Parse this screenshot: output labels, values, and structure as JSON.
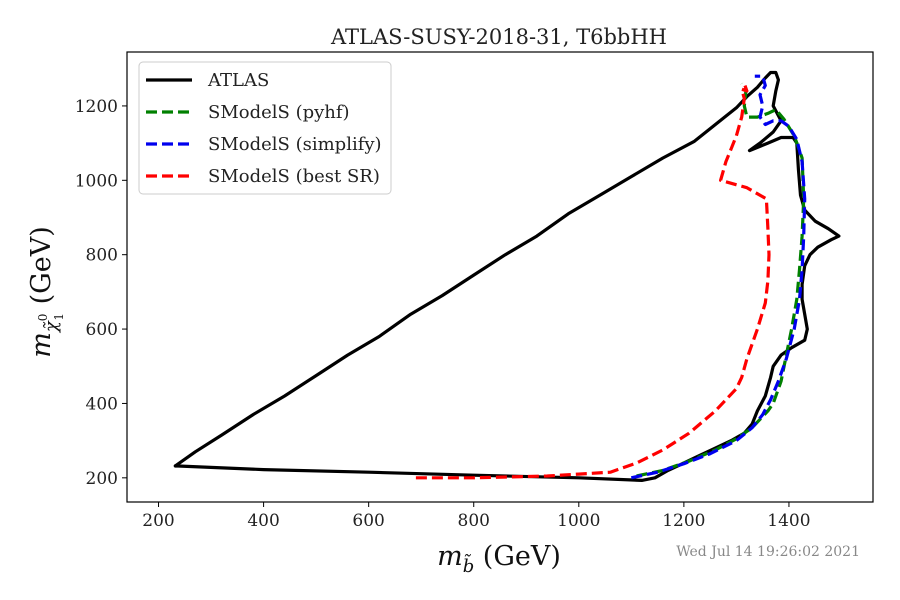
{
  "chart_data": {
    "type": "line",
    "title": "ATLAS-SUSY-2018-31, T6bbHH",
    "xlabel_math": "m",
    "xlabel_sub": "b̃",
    "xlabel_unit": " (GeV)",
    "ylabel_math": "m",
    "ylabel_sub": "χ̃",
    "ylabel_sub_sup": "0",
    "ylabel_sub_sub": "1",
    "ylabel_unit": " (GeV)",
    "xlim": [
      140,
      1560
    ],
    "ylim": [
      135,
      1345
    ],
    "xticks": [
      200,
      400,
      600,
      800,
      1000,
      1200,
      1400
    ],
    "yticks": [
      200,
      400,
      600,
      800,
      1000,
      1200
    ],
    "legend_position": "top-left",
    "timestamp": "Wed Jul 14 19:26:02 2021",
    "series": [
      {
        "name": "ATLAS",
        "color": "#000000",
        "dash": "solid",
        "points": [
          [
            232,
            232
          ],
          [
            270,
            270
          ],
          [
            320,
            315
          ],
          [
            380,
            370
          ],
          [
            440,
            420
          ],
          [
            500,
            475
          ],
          [
            560,
            530
          ],
          [
            620,
            580
          ],
          [
            680,
            640
          ],
          [
            740,
            690
          ],
          [
            800,
            745
          ],
          [
            860,
            800
          ],
          [
            920,
            850
          ],
          [
            980,
            910
          ],
          [
            1040,
            960
          ],
          [
            1100,
            1010
          ],
          [
            1160,
            1060
          ],
          [
            1220,
            1105
          ],
          [
            1260,
            1150
          ],
          [
            1300,
            1195
          ],
          [
            1320,
            1225
          ],
          [
            1340,
            1250
          ],
          [
            1355,
            1275
          ],
          [
            1365,
            1290
          ],
          [
            1375,
            1290
          ],
          [
            1380,
            1270
          ],
          [
            1375,
            1240
          ],
          [
            1370,
            1200
          ],
          [
            1385,
            1160
          ],
          [
            1370,
            1130
          ],
          [
            1345,
            1100
          ],
          [
            1325,
            1080
          ],
          [
            1360,
            1100
          ],
          [
            1385,
            1115
          ],
          [
            1408,
            1115
          ],
          [
            1415,
            1100
          ],
          [
            1418,
            1030
          ],
          [
            1422,
            960
          ],
          [
            1430,
            920
          ],
          [
            1450,
            890
          ],
          [
            1475,
            870
          ],
          [
            1495,
            850
          ],
          [
            1480,
            840
          ],
          [
            1455,
            820
          ],
          [
            1440,
            800
          ],
          [
            1430,
            770
          ],
          [
            1425,
            720
          ],
          [
            1425,
            680
          ],
          [
            1430,
            640
          ],
          [
            1435,
            600
          ],
          [
            1430,
            570
          ],
          [
            1405,
            550
          ],
          [
            1385,
            530
          ],
          [
            1370,
            500
          ],
          [
            1365,
            470
          ],
          [
            1355,
            420
          ],
          [
            1340,
            380
          ],
          [
            1330,
            345
          ],
          [
            1315,
            320
          ],
          [
            1290,
            300
          ],
          [
            1260,
            280
          ],
          [
            1230,
            260
          ],
          [
            1200,
            240
          ],
          [
            1170,
            220
          ],
          [
            1145,
            200
          ],
          [
            1120,
            193
          ],
          [
            1000,
            200
          ],
          [
            800,
            207
          ],
          [
            600,
            215
          ],
          [
            400,
            222
          ],
          [
            232,
            232
          ]
        ]
      },
      {
        "name": "SModelS (pyhf)",
        "color": "#008000",
        "dash": "dashed",
        "points": [
          [
            1110,
            205
          ],
          [
            1160,
            220
          ],
          [
            1210,
            245
          ],
          [
            1260,
            275
          ],
          [
            1300,
            305
          ],
          [
            1330,
            335
          ],
          [
            1360,
            380
          ],
          [
            1370,
            400
          ],
          [
            1385,
            460
          ],
          [
            1395,
            530
          ],
          [
            1405,
            600
          ],
          [
            1415,
            680
          ],
          [
            1420,
            760
          ],
          [
            1425,
            850
          ],
          [
            1428,
            950
          ],
          [
            1425,
            1060
          ],
          [
            1410,
            1120
          ],
          [
            1390,
            1165
          ],
          [
            1375,
            1190
          ],
          [
            1360,
            1180
          ],
          [
            1340,
            1170
          ],
          [
            1320,
            1170
          ],
          [
            1315,
            1200
          ],
          [
            1318,
            1240
          ],
          [
            1310,
            1260
          ]
        ]
      },
      {
        "name": "SModelS (simplify)",
        "color": "#0000ee",
        "dash": "dashed",
        "points": [
          [
            1100,
            200
          ],
          [
            1150,
            215
          ],
          [
            1200,
            238
          ],
          [
            1250,
            265
          ],
          [
            1300,
            300
          ],
          [
            1330,
            335
          ],
          [
            1350,
            370
          ],
          [
            1365,
            410
          ],
          [
            1380,
            460
          ],
          [
            1395,
            520
          ],
          [
            1410,
            600
          ],
          [
            1420,
            680
          ],
          [
            1425,
            760
          ],
          [
            1428,
            850
          ],
          [
            1430,
            950
          ],
          [
            1425,
            1050
          ],
          [
            1415,
            1110
          ],
          [
            1400,
            1145
          ],
          [
            1385,
            1160
          ],
          [
            1370,
            1160
          ],
          [
            1355,
            1150
          ],
          [
            1345,
            1170
          ],
          [
            1350,
            1200
          ],
          [
            1345,
            1230
          ],
          [
            1355,
            1255
          ],
          [
            1350,
            1280
          ],
          [
            1335,
            1280
          ]
        ]
      },
      {
        "name": "SModelS (best SR)",
        "color": "#ff0000",
        "dash": "dashed",
        "points": [
          [
            690,
            200
          ],
          [
            800,
            200
          ],
          [
            940,
            205
          ],
          [
            1000,
            210
          ],
          [
            1060,
            215
          ],
          [
            1110,
            240
          ],
          [
            1160,
            275
          ],
          [
            1210,
            320
          ],
          [
            1260,
            380
          ],
          [
            1300,
            440
          ],
          [
            1310,
            470
          ],
          [
            1320,
            520
          ],
          [
            1340,
            600
          ],
          [
            1355,
            670
          ],
          [
            1360,
            730
          ],
          [
            1362,
            800
          ],
          [
            1360,
            870
          ],
          [
            1357,
            950
          ],
          [
            1320,
            980
          ],
          [
            1270,
            1000
          ],
          [
            1280,
            1050
          ],
          [
            1290,
            1085
          ],
          [
            1300,
            1120
          ],
          [
            1310,
            1170
          ],
          [
            1315,
            1220
          ],
          [
            1310,
            1245
          ],
          [
            1320,
            1240
          ],
          [
            1315,
            1260
          ]
        ]
      }
    ]
  }
}
